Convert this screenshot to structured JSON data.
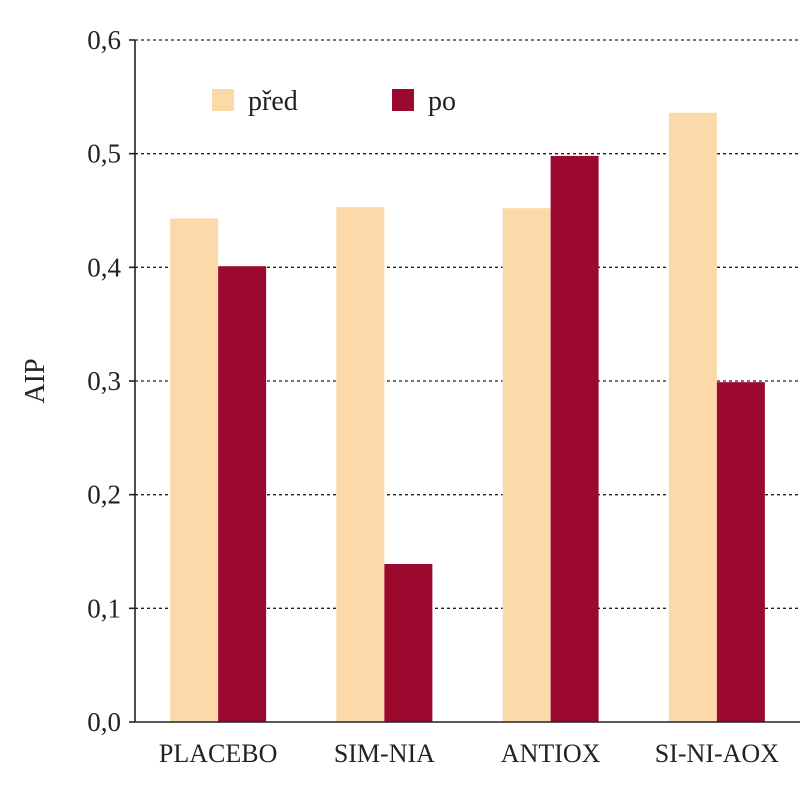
{
  "chart_data": {
    "type": "bar",
    "categories": [
      "PLACEBO",
      "SIM-NIA",
      "ANTIOX",
      "SI-NI-AOX"
    ],
    "series": [
      {
        "name": "před",
        "values": [
          0.443,
          0.453,
          0.452,
          0.536
        ],
        "color": "#fbd9a8"
      },
      {
        "name": "po",
        "values": [
          0.401,
          0.139,
          0.498,
          0.299
        ],
        "color": "#9b0a2e"
      }
    ],
    "ylabel": "AIP",
    "ylim": [
      0,
      0.6
    ],
    "yticks": [
      "0,0",
      "0,1",
      "0,2",
      "0,3",
      "0,4",
      "0,5",
      "0,6"
    ],
    "grid": true,
    "legend_position": "top-left"
  }
}
